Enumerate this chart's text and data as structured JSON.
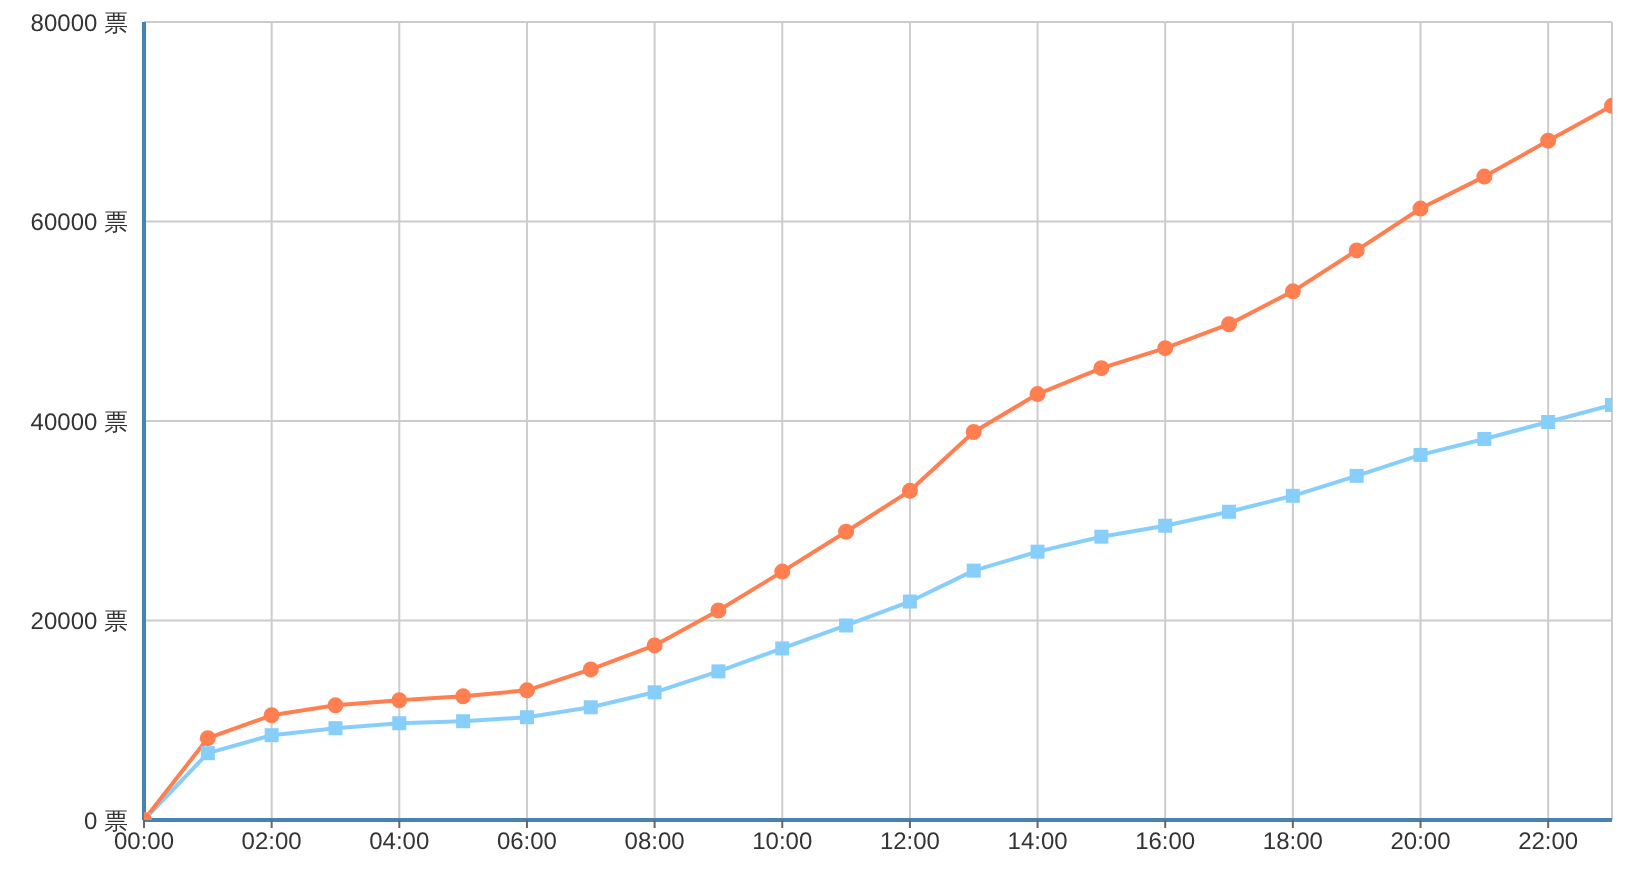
{
  "chart_data": {
    "type": "line",
    "x": [
      0,
      1,
      2,
      3,
      4,
      5,
      6,
      7,
      8,
      9,
      10,
      11,
      12,
      13,
      14,
      15,
      16,
      17,
      18,
      19,
      20,
      21,
      22,
      23
    ],
    "xlim": [
      0,
      23
    ],
    "xticks": [
      {
        "value": 0,
        "label": "00:00"
      },
      {
        "value": 2,
        "label": "02:00"
      },
      {
        "value": 4,
        "label": "04:00"
      },
      {
        "value": 6,
        "label": "06:00"
      },
      {
        "value": 8,
        "label": "08:00"
      },
      {
        "value": 10,
        "label": "10:00"
      },
      {
        "value": 12,
        "label": "12:00"
      },
      {
        "value": 14,
        "label": "14:00"
      },
      {
        "value": 16,
        "label": "16:00"
      },
      {
        "value": 18,
        "label": "18:00"
      },
      {
        "value": 20,
        "label": "20:00"
      },
      {
        "value": 22,
        "label": "22:00"
      }
    ],
    "ylim": [
      0,
      80000
    ],
    "yticks": [
      {
        "value": 0,
        "label": "0 票"
      },
      {
        "value": 20000,
        "label": "20000 票"
      },
      {
        "value": 40000,
        "label": "40000 票"
      },
      {
        "value": 60000,
        "label": "60000 票"
      },
      {
        "value": 80000,
        "label": "80000 票"
      }
    ],
    "grid": true,
    "line_style": "solid",
    "series": [
      {
        "color": "#87cefa",
        "marker": "square",
        "values": [
          0,
          6700,
          8500,
          9200,
          9700,
          9900,
          10300,
          11300,
          12800,
          14900,
          17200,
          19500,
          21900,
          25000,
          26900,
          28400,
          29500,
          30900,
          32500,
          34500,
          36600,
          38200,
          39900,
          41600
        ]
      },
      {
        "color": "#ff7f50",
        "marker": "circle",
        "values": [
          0,
          8200,
          10500,
          11500,
          12000,
          12400,
          13000,
          15100,
          17500,
          21000,
          24900,
          28900,
          33000,
          38900,
          42700,
          45300,
          47300,
          49700,
          53000,
          57100,
          61300,
          64500,
          68100,
          71600
        ]
      }
    ]
  }
}
